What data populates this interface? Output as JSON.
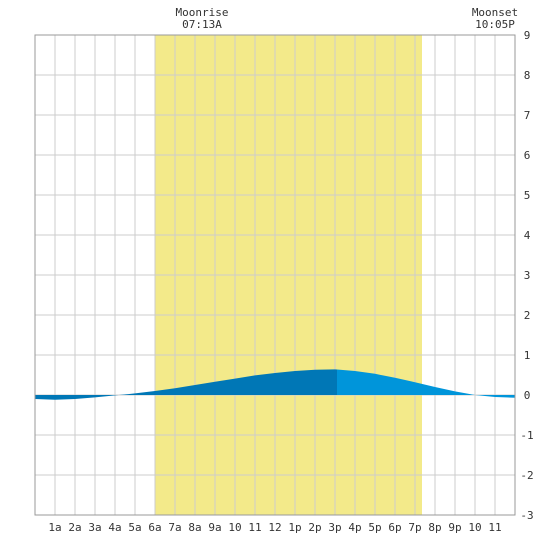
{
  "chart_data": {
    "type": "area",
    "title": "",
    "xlabel": "",
    "ylabel": "",
    "x_tick_labels": [
      "1a",
      "2a",
      "3a",
      "4a",
      "5a",
      "6a",
      "7a",
      "8a",
      "9a",
      "10",
      "11",
      "12",
      "1p",
      "2p",
      "3p",
      "4p",
      "5p",
      "6p",
      "7p",
      "8p",
      "9p",
      "10",
      "11"
    ],
    "x_range_hours": [
      0,
      24
    ],
    "ylim": [
      -3,
      9
    ],
    "y_ticks": [
      -3,
      -2,
      -1,
      0,
      1,
      2,
      3,
      4,
      5,
      6,
      7,
      8,
      9
    ],
    "grid": true,
    "daylight_band_hours": [
      6.0,
      19.35
    ],
    "moon": {
      "rise_label": "Moonrise",
      "rise_time": "07:13A",
      "set_label": "Moonset",
      "set_time": "10:05P"
    },
    "series": [
      {
        "x": [
          0,
          1,
          2,
          3,
          4,
          5,
          6,
          7,
          8,
          9,
          10,
          11,
          12,
          13,
          14,
          15,
          16,
          17,
          18,
          19,
          20,
          21,
          22,
          23,
          24
        ],
        "values": [
          -0.1,
          -0.12,
          -0.1,
          -0.06,
          -0.01,
          0.04,
          0.1,
          0.17,
          0.25,
          0.33,
          0.41,
          0.49,
          0.55,
          0.6,
          0.63,
          0.64,
          0.6,
          0.53,
          0.43,
          0.32,
          0.2,
          0.09,
          0.0,
          -0.05,
          -0.07
        ]
      }
    ],
    "fall_start_hour": 15.1
  },
  "colors": {
    "background": "#ffffff",
    "grid": "#cccccc",
    "daylight": "#f3ea8a",
    "water_dark": "#0077b6",
    "water_light": "#0095da",
    "frame": "#999999"
  }
}
